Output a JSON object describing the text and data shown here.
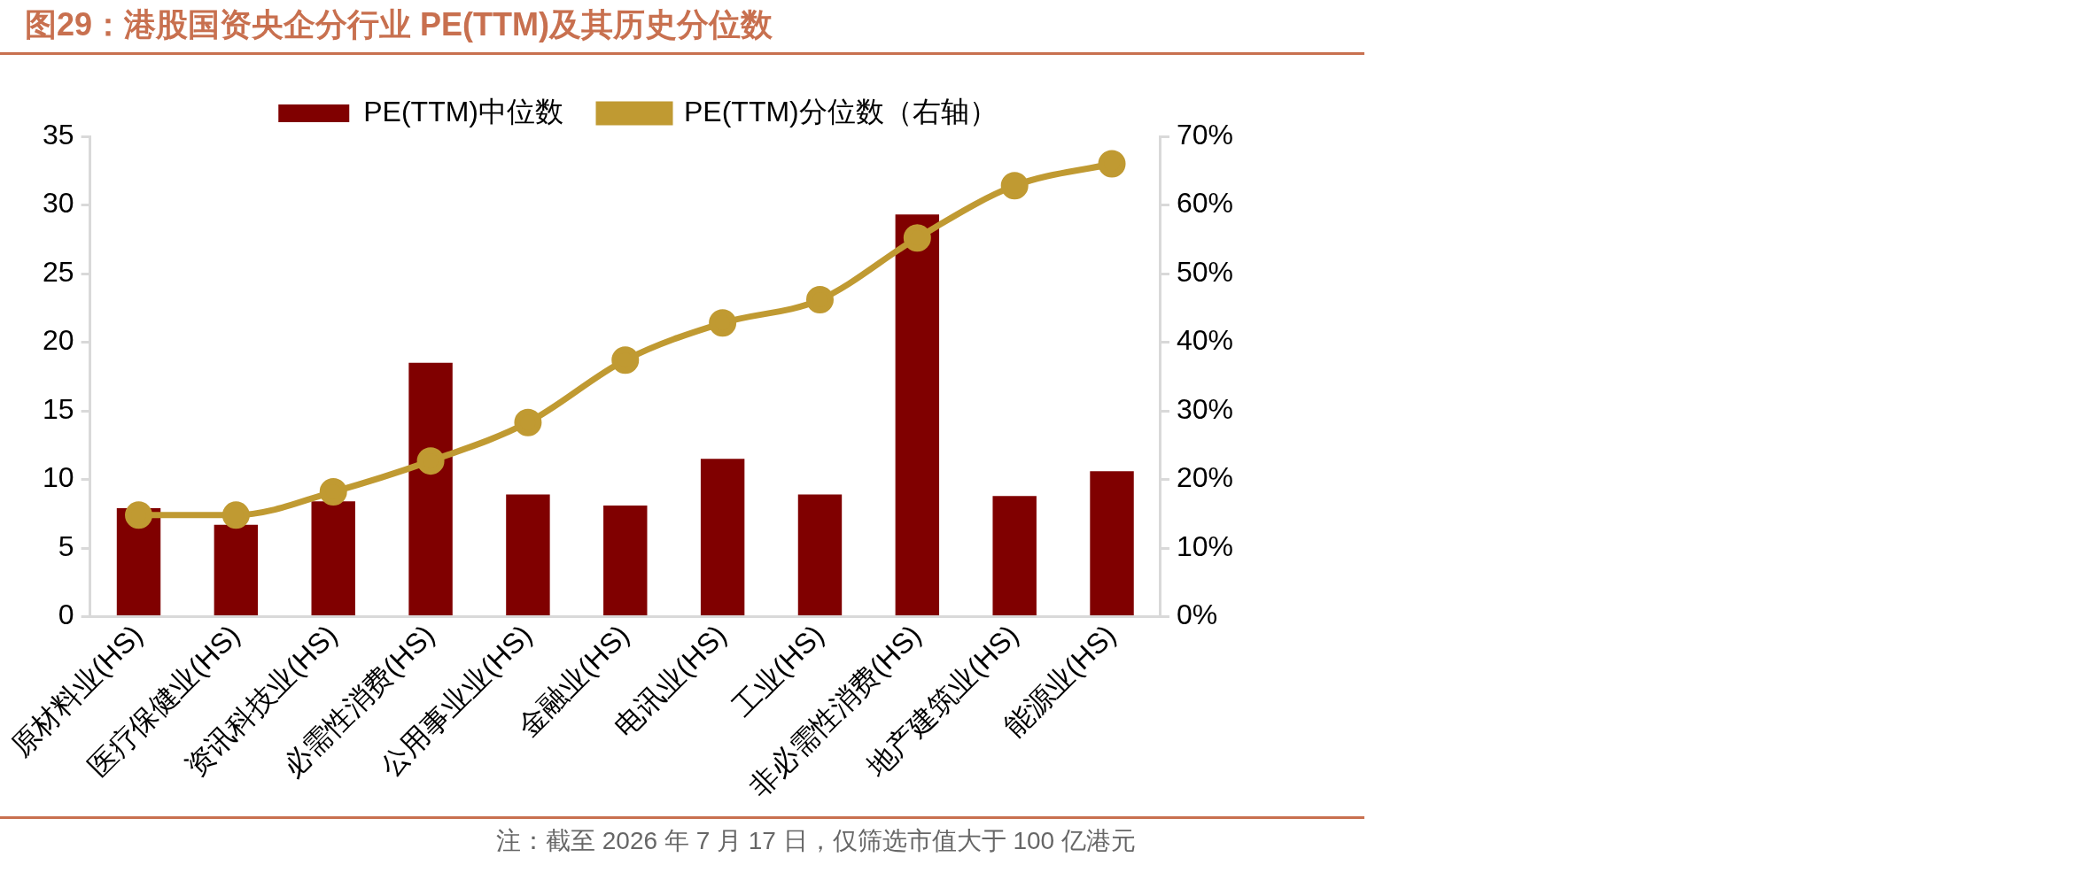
{
  "chart_data": {
    "type": "bar",
    "title": "图29：港股国资央企分行业 PE(TTM)及其历史分位数",
    "categories": [
      "原材料业(HS)",
      "医疗保健业(HS)",
      "资讯科技业(HS)",
      "必需性消费(HS)",
      "公用事业业(HS)",
      "金融业(HS)",
      "电讯业(HS)",
      "工业(HS)",
      "非必需性消费(HS)",
      "地产建筑业(HS)",
      "能源业(HS)"
    ],
    "series": [
      {
        "name": "PE(TTM)中位数",
        "color": "#800000",
        "values": [
          7.9,
          6.7,
          8.4,
          18.5,
          8.9,
          8.1,
          11.5,
          8.9,
          29.3,
          8.8,
          10.6
        ]
      },
      {
        "name": "PE(TTM)分位数（右轴）",
        "type": "line",
        "axis": "y2",
        "color": "#c09a32",
        "values": [
          14.8,
          14.8,
          18.2,
          22.7,
          28.3,
          37.4,
          42.8,
          46.2,
          55.2,
          62.8,
          66.0
        ]
      }
    ],
    "ylim": [
      0,
      35
    ],
    "yticks": [
      0,
      5,
      10,
      15,
      20,
      25,
      30,
      35
    ],
    "y2lim": [
      0,
      70
    ],
    "y2ticks": [
      {
        "value": 0,
        "label": "0%"
      },
      {
        "value": 10,
        "label": "10%"
      },
      {
        "value": 20,
        "label": "20%"
      },
      {
        "value": 30,
        "label": "30%"
      },
      {
        "value": 40,
        "label": "40%"
      },
      {
        "value": 50,
        "label": "50%"
      },
      {
        "value": 60,
        "label": "60%"
      },
      {
        "value": 70,
        "label": "70%"
      }
    ],
    "grid": false,
    "legend": "top",
    "marker": "circle",
    "line_style": "solid",
    "annotations": [
      "注：截至 2026 年 7 月 17 日，仅筛选市值大于 100 亿港元"
    ]
  }
}
